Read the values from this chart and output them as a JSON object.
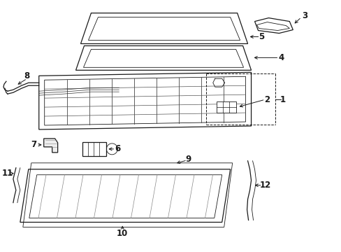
{
  "bg_color": "#ffffff",
  "line_color": "#1a1a1a",
  "lw_thin": 0.6,
  "lw_med": 0.9,
  "lw_thick": 1.2
}
